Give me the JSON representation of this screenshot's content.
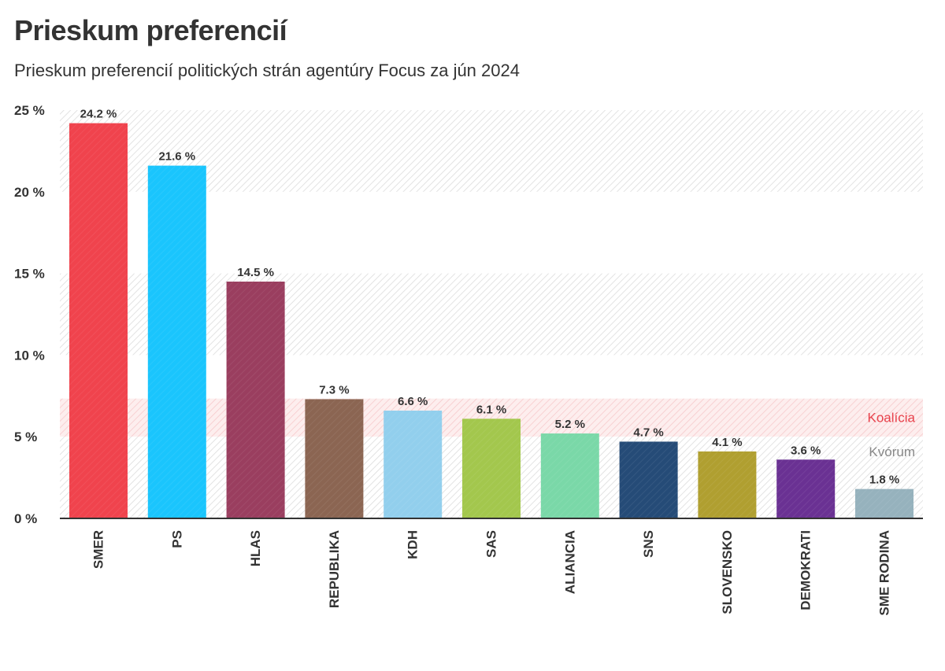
{
  "chart_data": {
    "type": "bar",
    "title": "Prieskum preferencií",
    "subtitle": "Prieskum preferencií politických strán agentúry Focus za jún 2024",
    "xlabel": "",
    "ylabel": "",
    "ylim": [
      0,
      25
    ],
    "yticks": [
      0,
      5,
      10,
      15,
      20,
      25
    ],
    "ytick_labels": [
      "0 %",
      "5 %",
      "10 %",
      "15 %",
      "20 %",
      "25 %"
    ],
    "categories": [
      "SMER",
      "PS",
      "HLAS",
      "REPUBLIKA",
      "KDH",
      "SAS",
      "ALIANCIA",
      "SNS",
      "SLOVENSKO",
      "DEMOKRATI",
      "SME RODINA"
    ],
    "values": [
      24.2,
      21.6,
      14.5,
      7.3,
      6.6,
      6.1,
      5.2,
      4.7,
      4.1,
      3.6,
      1.8
    ],
    "value_labels": [
      "24.2 %",
      "21.6 %",
      "14.5 %",
      "7.3 %",
      "6.6 %",
      "6.1 %",
      "5.2 %",
      "4.7 %",
      "4.1 %",
      "3.6 %",
      "1.8 %"
    ],
    "colors": [
      "#f0434d",
      "#1ac5fd",
      "#9a3e5f",
      "#8b6552",
      "#92cfed",
      "#a3c74d",
      "#7ad8a8",
      "#254b77",
      "#b09f30",
      "#6a3193",
      "#96b2bd"
    ],
    "bands": [
      {
        "label": "Koalícia",
        "from": 5,
        "to": 7,
        "color": "#e8424c"
      },
      {
        "label": "Kvórum",
        "from": 0,
        "to": 5,
        "color": "#888888"
      }
    ],
    "striped_ranges": [
      [
        10,
        15
      ],
      [
        20,
        25
      ]
    ],
    "grid": false,
    "legend": "none"
  }
}
